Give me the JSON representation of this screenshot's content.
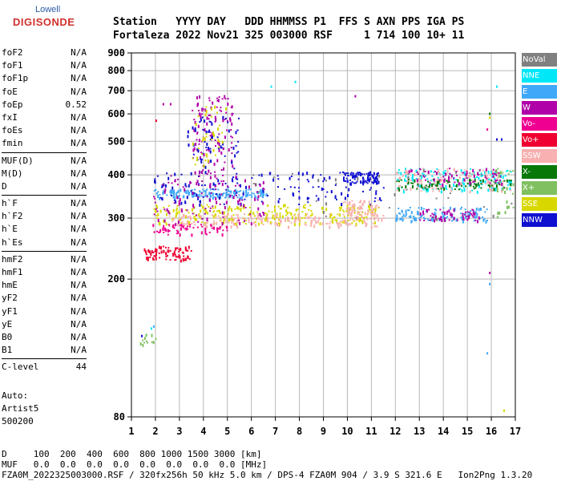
{
  "logo": {
    "top": "Lowell",
    "main": "DIGISONDE"
  },
  "header": {
    "line1": "Station   YYYY DAY   DDD HHMMSS P1  FFS S AXN PPS IGA PS",
    "line2": "Fortaleza 2022 Nov21 325 003000 RSF     1 714 100 10+ 11"
  },
  "params_group1": [
    {
      "k": "foF2",
      "v": "N/A"
    },
    {
      "k": "foF1",
      "v": "N/A"
    },
    {
      "k": "foF1p",
      "v": "N/A"
    },
    {
      "k": "foE",
      "v": "N/A"
    },
    {
      "k": "foEp",
      "v": "0.52"
    },
    {
      "k": "fxI",
      "v": "N/A"
    },
    {
      "k": "foEs",
      "v": "N/A"
    },
    {
      "k": "fmin",
      "v": "N/A"
    }
  ],
  "params_group2": [
    {
      "k": "MUF(D)",
      "v": "N/A"
    },
    {
      "k": "M(D)",
      "v": "N/A"
    },
    {
      "k": "D",
      "v": "N/A"
    }
  ],
  "params_group3": [
    {
      "k": "h`F",
      "v": "N/A"
    },
    {
      "k": "h`F2",
      "v": "N/A"
    },
    {
      "k": "h`E",
      "v": "N/A"
    },
    {
      "k": "h`Es",
      "v": "N/A"
    }
  ],
  "params_group4": [
    {
      "k": "hmF2",
      "v": "N/A"
    },
    {
      "k": "hmF1",
      "v": "N/A"
    },
    {
      "k": "hmE",
      "v": "N/A"
    },
    {
      "k": "yF2",
      "v": "N/A"
    },
    {
      "k": "yF1",
      "v": "N/A"
    },
    {
      "k": "yE",
      "v": "N/A"
    },
    {
      "k": "B0",
      "v": "N/A"
    },
    {
      "k": "B1",
      "v": "N/A"
    }
  ],
  "params_group5": [
    {
      "k": "C-level",
      "v": "44"
    }
  ],
  "auto": {
    "l1": "Auto:",
    "l2": "Artist5",
    "l3": "500200"
  },
  "footer": {
    "d_line": "D     100  200  400  600  800 1000 1500 3000 [km]",
    "muf_line": "MUF   0.0  0.0  0.0  0.0  0.0  0.0  0.0  0.0 [MHz]",
    "file_line": "FZA0M_2022325003000.RSF / 320fx256h 50 kHz 5.0 km / DPS-4 FZA0M 904 / 3.9 S 321.6 E   Ion2Png 1.3.20"
  },
  "legend": [
    {
      "name": "NoVal",
      "color": "#808080"
    },
    {
      "name": "NNE",
      "color": "#00e8f8"
    },
    {
      "name": "E",
      "color": "#40a8f8"
    },
    {
      "name": "W",
      "color": "#b000a8"
    },
    {
      "name": "Vo-",
      "color": "#f00090"
    },
    {
      "name": "Vo+",
      "color": "#f00030"
    },
    {
      "name": "SSW",
      "color": "#f8b0b0"
    },
    {
      "name": "X-",
      "color": "#087808"
    },
    {
      "name": "X+",
      "color": "#80c060"
    },
    {
      "name": "SSE",
      "color": "#d8d800"
    },
    {
      "name": "NNW",
      "color": "#1010d0"
    }
  ],
  "chart_data": {
    "type": "scatter",
    "xlim": [
      1,
      17
    ],
    "ylim": [
      80,
      900
    ],
    "xticks": [
      1,
      2,
      3,
      4,
      5,
      6,
      7,
      8,
      9,
      10,
      11,
      12,
      13,
      14,
      15,
      16,
      17
    ],
    "yticks": [
      80,
      200,
      300,
      400,
      500,
      600,
      700,
      800,
      900
    ],
    "grid": true,
    "legend_position": "right",
    "clusters": [
      {
        "series": "SSE",
        "x": [
          1.9,
          11.3
        ],
        "y": [
          290,
          330
        ],
        "n": 260
      },
      {
        "series": "SSW",
        "x": [
          2.5,
          11.5
        ],
        "y": [
          285,
          310
        ],
        "n": 180
      },
      {
        "series": "E",
        "x": [
          1.9,
          6.6
        ],
        "y": [
          345,
          365
        ],
        "n": 160
      },
      {
        "series": "NNW",
        "x": [
          1.9,
          11.5
        ],
        "y": [
          330,
          410
        ],
        "n": 150
      },
      {
        "series": "W",
        "x": [
          1.9,
          6.5
        ],
        "y": [
          290,
          400
        ],
        "n": 120
      },
      {
        "series": "Vo+",
        "x": [
          1.5,
          3.5
        ],
        "y": [
          228,
          250
        ],
        "n": 80
      },
      {
        "series": "Vo-",
        "x": [
          1.8,
          5.0
        ],
        "y": [
          270,
          290
        ],
        "n": 60
      },
      {
        "series": "W",
        "x": [
          3.5,
          5.2
        ],
        "y": [
          400,
          680
        ],
        "n": 120
      },
      {
        "series": "NNW",
        "x": [
          3.3,
          5.5
        ],
        "y": [
          400,
          600
        ],
        "n": 60
      },
      {
        "series": "SSE",
        "x": [
          3.5,
          5.0
        ],
        "y": [
          420,
          640
        ],
        "n": 40
      },
      {
        "series": "NNE",
        "x": [
          12.0,
          16.8
        ],
        "y": [
          360,
          420
        ],
        "n": 160
      },
      {
        "series": "SSW",
        "x": [
          12.0,
          16.8
        ],
        "y": [
          360,
          420
        ],
        "n": 120
      },
      {
        "series": "X-",
        "x": [
          12.0,
          16.8
        ],
        "y": [
          365,
          390
        ],
        "n": 80
      },
      {
        "series": "W",
        "x": [
          12.5,
          16.5
        ],
        "y": [
          375,
          420
        ],
        "n": 70
      },
      {
        "series": "E",
        "x": [
          12.0,
          15.8
        ],
        "y": [
          295,
          325
        ],
        "n": 120
      },
      {
        "series": "W",
        "x": [
          13.0,
          15.5
        ],
        "y": [
          295,
          320
        ],
        "n": 60
      },
      {
        "series": "NNW",
        "x": [
          9.8,
          11.3
        ],
        "y": [
          380,
          410
        ],
        "n": 80
      },
      {
        "series": "SSW",
        "x": [
          9.8,
          11.3
        ],
        "y": [
          295,
          340
        ],
        "n": 80
      },
      {
        "series": "X+",
        "x": [
          16.0,
          17.0
        ],
        "y": [
          300,
          420
        ],
        "n": 30
      },
      {
        "series": "NoVal",
        "x": [
          6.0,
          17.0
        ],
        "y": [
          300,
          420
        ],
        "n": 40
      },
      {
        "series": "X+",
        "x": [
          1.3,
          2.0
        ],
        "y": [
          130,
          140
        ],
        "n": 12
      }
    ],
    "points": [
      {
        "series": "NNE",
        "x": 7.8,
        "y": 748
      },
      {
        "series": "W",
        "x": 10.3,
        "y": 680
      },
      {
        "series": "NNE",
        "x": 6.8,
        "y": 725
      },
      {
        "series": "NNE",
        "x": 16.2,
        "y": 725
      },
      {
        "series": "NNW",
        "x": 16.2,
        "y": 510
      },
      {
        "series": "NNW",
        "x": 16.4,
        "y": 510
      },
      {
        "series": "X-",
        "x": 15.9,
        "y": 605
      },
      {
        "series": "SSE",
        "x": 15.9,
        "y": 590
      },
      {
        "series": "Vo-",
        "x": 15.8,
        "y": 545
      },
      {
        "series": "SSE",
        "x": 16.5,
        "y": 84
      },
      {
        "series": "E",
        "x": 15.8,
        "y": 123
      },
      {
        "series": "E",
        "x": 1.9,
        "y": 147
      },
      {
        "series": "NNE",
        "x": 1.8,
        "y": 145
      },
      {
        "series": "W",
        "x": 2.3,
        "y": 645
      },
      {
        "series": "W",
        "x": 2.6,
        "y": 645
      },
      {
        "series": "NNW",
        "x": 1.4,
        "y": 138
      },
      {
        "series": "Vo+",
        "x": 2.0,
        "y": 578
      },
      {
        "series": "E",
        "x": 15.9,
        "y": 195
      },
      {
        "series": "W",
        "x": 15.9,
        "y": 210
      }
    ]
  }
}
